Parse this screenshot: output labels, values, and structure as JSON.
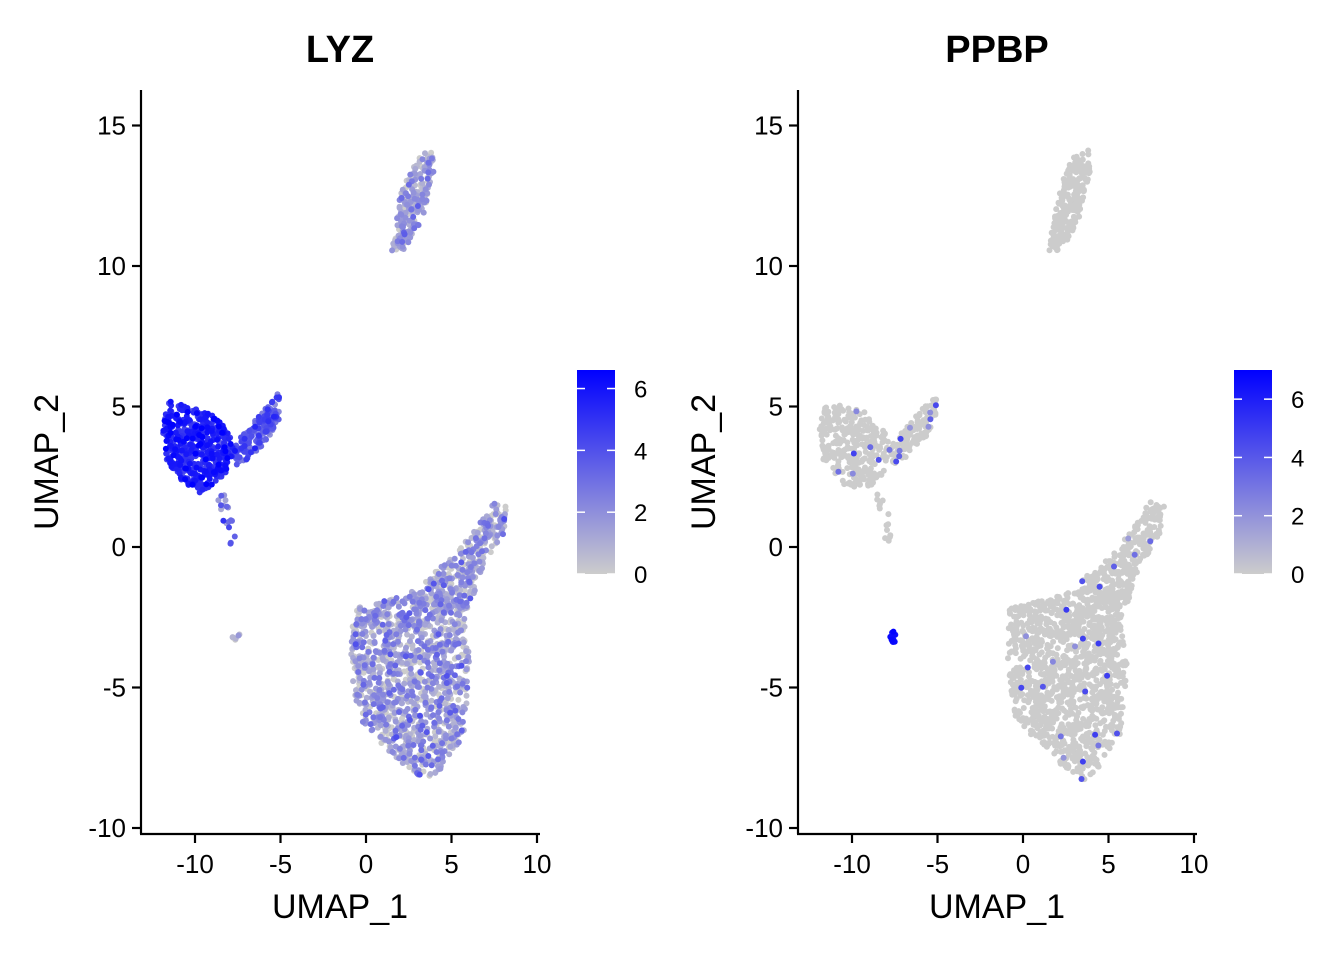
{
  "chart_data": [
    {
      "type": "scatter",
      "title": "LYZ",
      "xlabel": "UMAP_1",
      "ylabel": "UMAP_2",
      "xlim": [
        -12.5,
        9.8
      ],
      "ylim": [
        -10.2,
        16.3
      ],
      "xticks": [
        -10,
        -5,
        0,
        5,
        10
      ],
      "xtick_labels": [
        "-10",
        "-5",
        "0",
        "5",
        "10"
      ],
      "yticks": [
        -10,
        -5,
        0,
        5,
        10,
        15
      ],
      "ytick_labels": [
        "-10",
        "-5",
        "0",
        "5",
        "10",
        "15"
      ],
      "grid": false,
      "legend": "right",
      "color_scale": {
        "low": "#cccccc",
        "high": "#0000ff",
        "min": 0,
        "max": 6.6,
        "ticks": [
          0,
          2,
          4,
          6
        ],
        "tick_labels": [
          "0",
          "2",
          "4",
          "6"
        ]
      },
      "clusters": [
        {
          "name_hint": "monocytes-left",
          "xy": [
            [
              -11.5,
              5.2
            ],
            [
              -10.5,
              5.0
            ],
            [
              -9.2,
              4.8
            ],
            [
              -8.3,
              4.3
            ],
            [
              -7.6,
              3.5
            ],
            [
              -8.0,
              2.7
            ],
            [
              -8.9,
              2.2
            ],
            [
              -9.8,
              1.9
            ],
            [
              -10.8,
              2.4
            ],
            [
              -11.7,
              3.1
            ],
            [
              -11.9,
              4.3
            ]
          ],
          "n": 520,
          "expr_mean": 5.3,
          "expr_sd": 0.8
        },
        {
          "name_hint": "monocytes-wing",
          "xy": [
            [
              -7.9,
              3.5
            ],
            [
              -6.9,
              4.2
            ],
            [
              -5.9,
              4.9
            ],
            [
              -5.1,
              5.5
            ],
            [
              -5.0,
              4.6
            ],
            [
              -5.8,
              3.8
            ],
            [
              -6.7,
              3.2
            ],
            [
              -7.6,
              2.9
            ]
          ],
          "n": 170,
          "expr_mean": 3.6,
          "expr_sd": 0.8
        },
        {
          "name_hint": "monocytes-tail",
          "xy": [
            [
              -8.8,
              2.0
            ],
            [
              -8.0,
              1.8
            ],
            [
              -7.6,
              0.2
            ],
            [
              -7.9,
              -0.1
            ],
            [
              -8.4,
              1.0
            ]
          ],
          "n": 18,
          "expr_mean": 3.2,
          "expr_sd": 1.2
        },
        {
          "name_hint": "small-island",
          "xy": [
            [
              -7.8,
              -3.1
            ],
            [
              -7.4,
              -3.1
            ],
            [
              -7.4,
              -3.4
            ],
            [
              -7.8,
              -3.4
            ]
          ],
          "n": 6,
          "expr_mean": 0.6,
          "expr_sd": 0.5
        },
        {
          "name_hint": "b-cells",
          "xy": [
            [
              1.5,
              10.5
            ],
            [
              2.0,
              12.5
            ],
            [
              2.8,
              13.8
            ],
            [
              3.8,
              14.2
            ],
            [
              4.0,
              13.5
            ],
            [
              3.3,
              11.7
            ],
            [
              2.3,
              10.6
            ]
          ],
          "n": 230,
          "expr_mean": 1.1,
          "expr_sd": 1.2
        },
        {
          "name_hint": "t-nk-main",
          "xy": [
            [
              -0.8,
              -2.2
            ],
            [
              1.8,
              -1.8
            ],
            [
              4.0,
              -1.3
            ],
            [
              5.6,
              -1.6
            ],
            [
              6.1,
              -4.2
            ],
            [
              5.7,
              -6.7
            ],
            [
              4.4,
              -7.9
            ],
            [
              3.5,
              -8.3
            ],
            [
              2.3,
              -7.8
            ],
            [
              0.9,
              -7.0
            ],
            [
              -0.5,
              -6.0
            ],
            [
              -0.9,
              -4.2
            ]
          ],
          "n": 1250,
          "expr_mean": 1.2,
          "expr_sd": 1.1
        },
        {
          "name_hint": "t-nk-neck",
          "xy": [
            [
              3.4,
              -1.2
            ],
            [
              5.2,
              -0.3
            ],
            [
              6.5,
              0.7
            ],
            [
              7.4,
              1.6
            ],
            [
              8.3,
              1.5
            ],
            [
              8.0,
              0.4
            ],
            [
              6.9,
              -0.6
            ],
            [
              6.0,
              -2.2
            ],
            [
              4.6,
              -2.3
            ]
          ],
          "n": 300,
          "expr_mean": 1.0,
          "expr_sd": 1.1
        }
      ]
    },
    {
      "type": "scatter",
      "title": "PPBP",
      "xlabel": "UMAP_1",
      "ylabel": "UMAP_2",
      "xlim": [
        -12.5,
        9.8
      ],
      "ylim": [
        -10.2,
        16.3
      ],
      "xticks": [
        -10,
        -5,
        0,
        5,
        10
      ],
      "xtick_labels": [
        "-10",
        "-5",
        "0",
        "5",
        "10"
      ],
      "yticks": [
        -10,
        -5,
        0,
        5,
        10,
        15
      ],
      "ytick_labels": [
        "-10",
        "-5",
        "0",
        "5",
        "10",
        "15"
      ],
      "grid": false,
      "legend": "right",
      "color_scale": {
        "low": "#cccccc",
        "high": "#0000ff",
        "min": 0,
        "max": 7.0,
        "ticks": [
          0,
          2,
          4,
          6
        ],
        "tick_labels": [
          "0",
          "2",
          "4",
          "6"
        ]
      },
      "clusters": [
        {
          "name_hint": "monocytes-left",
          "xy": [
            [
              -11.5,
              5.2
            ],
            [
              -10.5,
              5.0
            ],
            [
              -9.2,
              4.8
            ],
            [
              -8.3,
              4.3
            ],
            [
              -7.6,
              3.5
            ],
            [
              -8.0,
              2.7
            ],
            [
              -8.9,
              2.2
            ],
            [
              -9.8,
              1.9
            ],
            [
              -10.8,
              2.4
            ],
            [
              -11.7,
              3.1
            ],
            [
              -11.9,
              4.3
            ]
          ],
          "n": 300,
          "expr_mean": 0.0,
          "expr_sd": 0.0,
          "frac_expr": 0.03
        },
        {
          "name_hint": "monocytes-wing",
          "xy": [
            [
              -7.9,
              3.5
            ],
            [
              -6.9,
              4.2
            ],
            [
              -5.9,
              4.9
            ],
            [
              -5.1,
              5.5
            ],
            [
              -5.0,
              4.6
            ],
            [
              -5.8,
              3.8
            ],
            [
              -6.7,
              3.2
            ],
            [
              -7.6,
              2.9
            ]
          ],
          "n": 120,
          "expr_mean": 0.0,
          "expr_sd": 0.0,
          "frac_expr": 0.05
        },
        {
          "name_hint": "monocytes-tail",
          "xy": [
            [
              -8.8,
              2.0
            ],
            [
              -8.0,
              1.8
            ],
            [
              -7.6,
              0.2
            ],
            [
              -7.9,
              -0.1
            ],
            [
              -8.4,
              1.0
            ]
          ],
          "n": 14,
          "expr_mean": 0.0,
          "expr_sd": 0.0
        },
        {
          "name_hint": "platelets",
          "xy": [
            [
              -7.8,
              -3.0
            ],
            [
              -7.4,
              -3.0
            ],
            [
              -7.4,
              -3.4
            ],
            [
              -7.8,
              -3.4
            ]
          ],
          "n": 14,
          "expr_mean": 6.5,
          "expr_sd": 0.3
        },
        {
          "name_hint": "b-cells",
          "xy": [
            [
              1.5,
              10.5
            ],
            [
              2.0,
              12.5
            ],
            [
              2.8,
              13.8
            ],
            [
              3.8,
              14.2
            ],
            [
              4.0,
              13.5
            ],
            [
              3.3,
              11.7
            ],
            [
              2.3,
              10.6
            ]
          ],
          "n": 230,
          "expr_mean": 0.0,
          "expr_sd": 0.0
        },
        {
          "name_hint": "t-nk-main",
          "xy": [
            [
              -0.8,
              -2.2
            ],
            [
              1.8,
              -1.8
            ],
            [
              4.0,
              -1.3
            ],
            [
              5.6,
              -1.6
            ],
            [
              6.1,
              -4.2
            ],
            [
              5.7,
              -6.7
            ],
            [
              4.4,
              -7.9
            ],
            [
              3.5,
              -8.3
            ],
            [
              2.3,
              -7.8
            ],
            [
              0.9,
              -7.0
            ],
            [
              -0.5,
              -6.0
            ],
            [
              -0.9,
              -4.2
            ]
          ],
          "n": 1250,
          "expr_mean": 0.0,
          "expr_sd": 0.0,
          "frac_expr": 0.01
        },
        {
          "name_hint": "t-nk-neck",
          "xy": [
            [
              3.4,
              -1.2
            ],
            [
              5.2,
              -0.3
            ],
            [
              6.5,
              0.7
            ],
            [
              7.4,
              1.6
            ],
            [
              8.3,
              1.5
            ],
            [
              8.0,
              0.4
            ],
            [
              6.9,
              -0.6
            ],
            [
              6.0,
              -2.2
            ],
            [
              4.6,
              -2.3
            ]
          ],
          "n": 300,
          "expr_mean": 0.0,
          "expr_sd": 0.0,
          "frac_expr": 0.01
        }
      ]
    }
  ]
}
